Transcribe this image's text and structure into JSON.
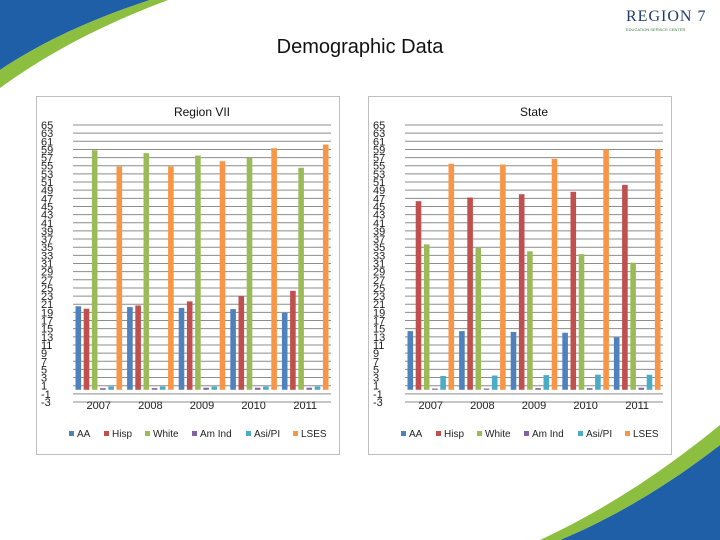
{
  "slide": {
    "title": "Demographic Data",
    "logo_text": "REGION 7",
    "logo_subtitle": "EDUCATION SERVICE CENTER",
    "colors": {
      "swoosh_blue": "#1f5fa8",
      "swoosh_green": "#8cbf3f"
    }
  },
  "chart_data": [
    {
      "type": "bar",
      "title": "Region VII",
      "categories": [
        "2007",
        "2008",
        "2009",
        "2010",
        "2011"
      ],
      "ylim": [
        -3,
        65
      ],
      "yticks": [
        "65",
        "63",
        "61",
        "59",
        "57",
        "55",
        "53",
        "51",
        "49",
        "47",
        "45",
        "43",
        "41",
        "39",
        "37",
        "35",
        "33",
        "31",
        "29",
        "27",
        "25",
        "23",
        "21",
        "19",
        "17",
        "15",
        "13",
        "11",
        "9",
        "7",
        "5",
        "3",
        "1",
        "-1",
        "-3"
      ],
      "grid": true,
      "legend": "bottom",
      "series": [
        {
          "name": "AA",
          "color": "#4f81bd",
          "values": [
            20.5,
            20.3,
            20.1,
            19.8,
            18.9
          ]
        },
        {
          "name": "Hisp",
          "color": "#c0504d",
          "values": [
            19.9,
            20.7,
            21.7,
            23.0,
            24.3
          ]
        },
        {
          "name": "White",
          "color": "#9bbb59",
          "values": [
            58.8,
            58.1,
            57.5,
            56.9,
            54.5
          ]
        },
        {
          "name": "Am Ind",
          "color": "#8064a2",
          "values": [
            0.4,
            0.4,
            0.5,
            0.5,
            0.5
          ]
        },
        {
          "name": "Asi/PI",
          "color": "#4bacc6",
          "values": [
            0.8,
            0.8,
            0.8,
            0.8,
            0.8
          ]
        },
        {
          "name": "LSES",
          "color": "#f79646",
          "values": [
            54.8,
            54.8,
            56.1,
            59.3,
            60.2
          ]
        }
      ]
    },
    {
      "type": "bar",
      "title": "State",
      "categories": [
        "2007",
        "2008",
        "2009",
        "2010",
        "2011"
      ],
      "ylim": [
        -3,
        65
      ],
      "yticks": [
        "65",
        "63",
        "61",
        "59",
        "57",
        "55",
        "53",
        "51",
        "49",
        "47",
        "45",
        "43",
        "41",
        "39",
        "37",
        "35",
        "33",
        "31",
        "29",
        "27",
        "25",
        "23",
        "21",
        "19",
        "17",
        "15",
        "13",
        "11",
        "9",
        "7",
        "5",
        "3",
        "1",
        "-1",
        "-3"
      ],
      "grid": true,
      "legend": "bottom",
      "series": [
        {
          "name": "AA",
          "color": "#4f81bd",
          "values": [
            14.4,
            14.4,
            14.2,
            14.0,
            12.9
          ]
        },
        {
          "name": "Hisp",
          "color": "#c0504d",
          "values": [
            46.3,
            47.2,
            48.0,
            48.6,
            50.3
          ]
        },
        {
          "name": "White",
          "color": "#9bbb59",
          "values": [
            35.7,
            34.8,
            34.0,
            33.3,
            31.2
          ]
        },
        {
          "name": "Am Ind",
          "color": "#8064a2",
          "values": [
            0.3,
            0.3,
            0.4,
            0.4,
            0.5
          ]
        },
        {
          "name": "Asi/PI",
          "color": "#4bacc6",
          "values": [
            3.4,
            3.5,
            3.6,
            3.7,
            3.7
          ]
        },
        {
          "name": "LSES",
          "color": "#f79646",
          "values": [
            55.5,
            55.3,
            56.7,
            59.0,
            59.0
          ]
        }
      ]
    }
  ]
}
